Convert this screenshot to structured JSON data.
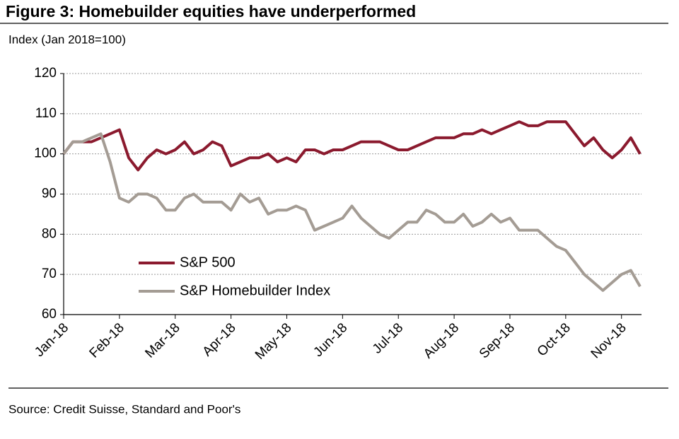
{
  "chart_data": {
    "type": "line",
    "title": "Figure 3: Homebuilder equities have underperformed",
    "subtitle": "Index (Jan 2018=100)",
    "source": "Source: Credit Suisse, Standard and Poor's",
    "categories": [
      "Jan-18",
      null,
      null,
      null,
      null,
      null,
      "Feb-18",
      null,
      null,
      null,
      null,
      null,
      "Mar-18",
      null,
      null,
      null,
      null,
      null,
      "Apr-18",
      null,
      null,
      null,
      null,
      null,
      "May-18",
      null,
      null,
      null,
      null,
      null,
      "Jun-18",
      null,
      null,
      null,
      null,
      null,
      "Jul-18",
      null,
      null,
      null,
      null,
      null,
      "Aug-18",
      null,
      null,
      null,
      null,
      null,
      "Sep-18",
      null,
      null,
      null,
      null,
      null,
      "Oct-18",
      null,
      null,
      null,
      null,
      null,
      "Nov-18",
      null,
      null
    ],
    "series": [
      {
        "name": "S&P 500",
        "color": "#8b1a2e",
        "values": [
          100,
          103,
          103,
          103,
          104,
          105,
          106,
          99,
          96,
          99,
          101,
          100,
          101,
          103,
          100,
          101,
          103,
          102,
          97,
          98,
          99,
          99,
          100,
          98,
          99,
          98,
          101,
          101,
          100,
          101,
          101,
          102,
          103,
          103,
          103,
          102,
          101,
          101,
          102,
          103,
          104,
          104,
          104,
          105,
          105,
          106,
          105,
          106,
          107,
          108,
          107,
          107,
          108,
          108,
          108,
          105,
          102,
          104,
          101,
          99,
          101,
          104,
          100
        ]
      },
      {
        "name": "S&P Homebuilder Index",
        "color": "#a49c94",
        "values": [
          100,
          103,
          103,
          104,
          105,
          98,
          89,
          88,
          90,
          90,
          89,
          86,
          86,
          89,
          90,
          88,
          88,
          88,
          86,
          90,
          88,
          89,
          85,
          86,
          86,
          87,
          86,
          81,
          82,
          83,
          84,
          87,
          84,
          82,
          80,
          79,
          81,
          83,
          83,
          86,
          85,
          83,
          83,
          85,
          82,
          83,
          85,
          83,
          84,
          81,
          81,
          81,
          79,
          77,
          76,
          73,
          70,
          68,
          66,
          68,
          70,
          71,
          67
        ]
      }
    ],
    "ylim": [
      60,
      120
    ],
    "yticks": [
      60,
      70,
      80,
      90,
      100,
      110,
      120
    ],
    "grid": true,
    "legend": "bottom-left"
  }
}
